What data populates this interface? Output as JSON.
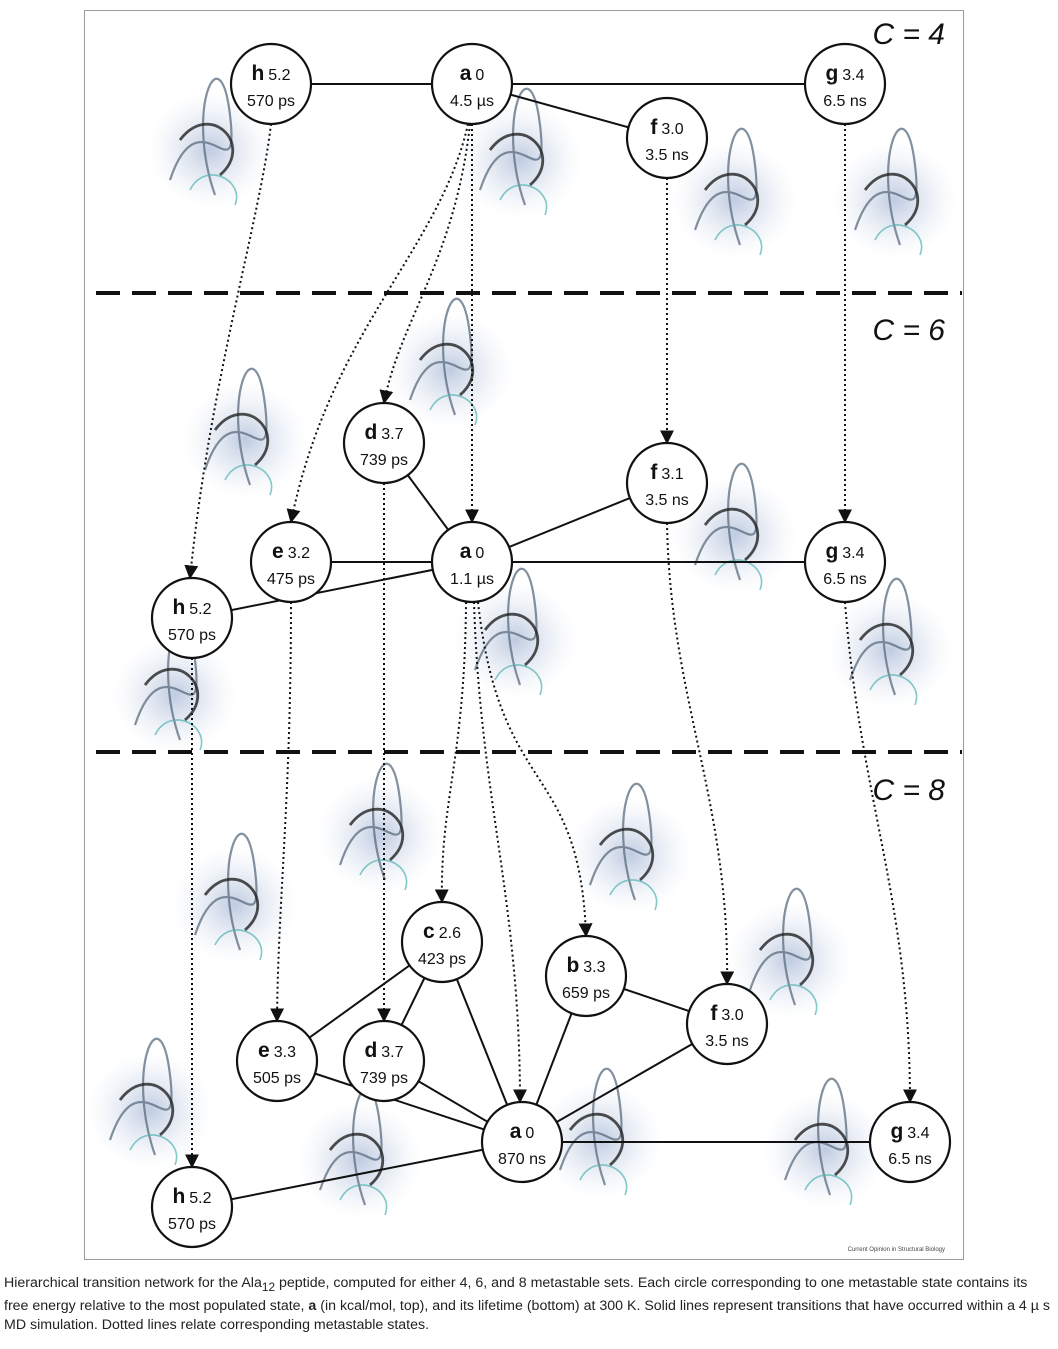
{
  "level_labels": [
    "C = 4",
    "C = 6",
    "C = 8"
  ],
  "credit": "Current Opinion in Structural Biology",
  "levels": [
    {
      "id": "c4",
      "nodes": [
        {
          "key": "h",
          "letter": "h",
          "energy": "5.2",
          "lifetime": "570 ps"
        },
        {
          "key": "a",
          "letter": "a",
          "energy": "0",
          "lifetime": "4.5 µs"
        },
        {
          "key": "g",
          "letter": "g",
          "energy": "3.4",
          "lifetime": "6.5 ns"
        },
        {
          "key": "f",
          "letter": "f",
          "energy": "3.0",
          "lifetime": "3.5 ns"
        }
      ],
      "edges": [
        [
          "h",
          "a"
        ],
        [
          "a",
          "g"
        ],
        [
          "a",
          "f"
        ]
      ]
    },
    {
      "id": "c6",
      "nodes": [
        {
          "key": "d",
          "letter": "d",
          "energy": "3.7",
          "lifetime": "739 ps"
        },
        {
          "key": "f",
          "letter": "f",
          "energy": "3.1",
          "lifetime": "3.5 ns"
        },
        {
          "key": "e",
          "letter": "e",
          "energy": "3.2",
          "lifetime": "475 ps"
        },
        {
          "key": "a",
          "letter": "a",
          "energy": "0",
          "lifetime": "1.1 µs"
        },
        {
          "key": "g",
          "letter": "g",
          "energy": "3.4",
          "lifetime": "6.5 ns"
        },
        {
          "key": "h",
          "letter": "h",
          "energy": "5.2",
          "lifetime": "570 ps"
        }
      ],
      "edges": [
        [
          "d",
          "a"
        ],
        [
          "f",
          "a"
        ],
        [
          "e",
          "a"
        ],
        [
          "a",
          "g"
        ],
        [
          "h",
          "a"
        ]
      ]
    },
    {
      "id": "c8",
      "nodes": [
        {
          "key": "c",
          "letter": "c",
          "energy": "2.6",
          "lifetime": "423 ps"
        },
        {
          "key": "b",
          "letter": "b",
          "energy": "3.3",
          "lifetime": "659 ps"
        },
        {
          "key": "f",
          "letter": "f",
          "energy": "3.0",
          "lifetime": "3.5 ns"
        },
        {
          "key": "e",
          "letter": "e",
          "energy": "3.3",
          "lifetime": "505 ps"
        },
        {
          "key": "d",
          "letter": "d",
          "energy": "3.7",
          "lifetime": "739 ps"
        },
        {
          "key": "a",
          "letter": "a",
          "energy": "0",
          "lifetime": "870 ns"
        },
        {
          "key": "g",
          "letter": "g",
          "energy": "3.4",
          "lifetime": "6.5 ns"
        },
        {
          "key": "h",
          "letter": "h",
          "energy": "5.2",
          "lifetime": "570 ps"
        }
      ],
      "edges": [
        [
          "c",
          "e"
        ],
        [
          "c",
          "d"
        ],
        [
          "c",
          "a"
        ],
        [
          "b",
          "a"
        ],
        [
          "b",
          "f"
        ],
        [
          "f",
          "a"
        ],
        [
          "e",
          "a"
        ],
        [
          "d",
          "a"
        ],
        [
          "a",
          "g"
        ],
        [
          "h",
          "a"
        ]
      ]
    }
  ],
  "caption": {
    "part1": "Hierarchical transition network for the Ala",
    "sub": "12",
    "part2": " peptide, computed for either 4, 6, and 8 metastable sets. Each circle corresponding to one metastable state contains its free energy relative to the most populated state, ",
    "bold": "a",
    "part3": " (in kcal/mol, top), and its lifetime (bottom) at 300 K. Solid lines represent transitions that have occurred within a 4 µ s MD simulation. Dotted lines relate corresponding metastable states."
  }
}
